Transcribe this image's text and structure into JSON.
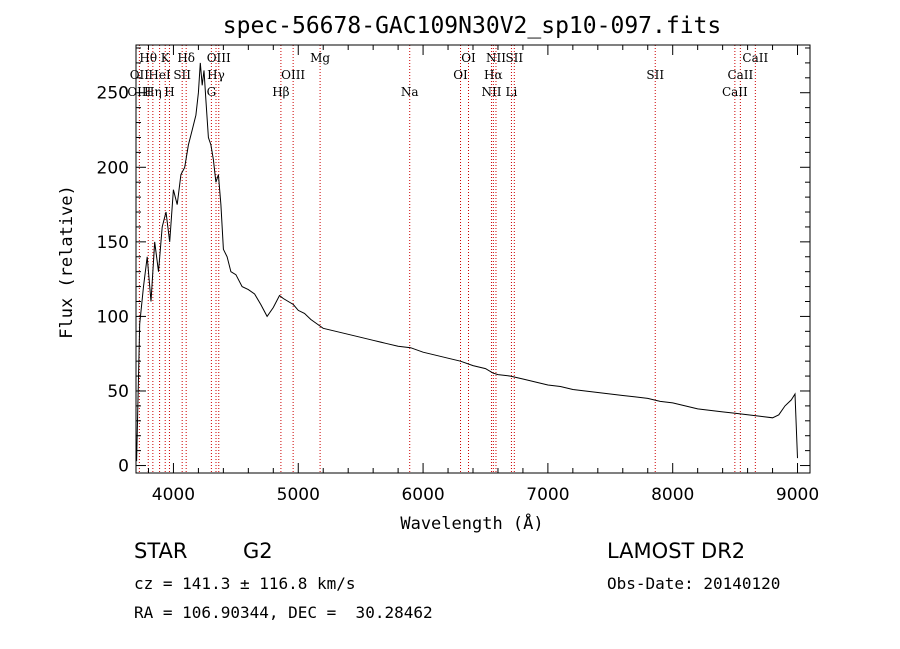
{
  "chart_data": {
    "type": "line",
    "title": "spec-56678-GAC109N30V2_sp10-097.fits",
    "xlabel": "Wavelength (Å)",
    "ylabel": "Flux (relative)",
    "xlim": [
      3700,
      9100
    ],
    "ylim": [
      -5,
      282
    ],
    "xticks": [
      4000,
      5000,
      6000,
      7000,
      8000,
      9000
    ],
    "yticks": [
      0,
      50,
      100,
      150,
      200,
      250
    ],
    "xtick_labels": [
      "4000",
      "5000",
      "6000",
      "7000",
      "8000",
      "9000"
    ],
    "ytick_labels": [
      "0",
      "50",
      "100",
      "150",
      "200",
      "250"
    ],
    "grid": false,
    "line_color": "#000000",
    "marker_color": "#cc0000",
    "series": [
      {
        "x": [
          3705,
          3730,
          3760,
          3790,
          3820,
          3850,
          3880,
          3910,
          3940,
          3970,
          4000,
          4030,
          4060,
          4090,
          4120,
          4150,
          4180,
          4200,
          4215,
          4230,
          4245,
          4260,
          4280,
          4300,
          4320,
          4340,
          4360,
          4380,
          4400,
          4430,
          4460,
          4500,
          4550,
          4600,
          4650,
          4700,
          4750,
          4800,
          4850,
          4880,
          4920,
          4960,
          5000,
          5050,
          5100,
          5150,
          5200,
          5300,
          5400,
          5500,
          5600,
          5700,
          5800,
          5900,
          6000,
          6100,
          6200,
          6300,
          6400,
          6500,
          6560,
          6600,
          6700,
          6800,
          6900,
          7000,
          7100,
          7200,
          7300,
          7400,
          7500,
          7600,
          7700,
          7800,
          7900,
          8000,
          8100,
          8200,
          8300,
          8400,
          8500,
          8600,
          8700,
          8800,
          8850,
          8900,
          8950,
          8980,
          9000
        ],
        "y": [
          3,
          95,
          120,
          140,
          110,
          150,
          130,
          160,
          170,
          150,
          185,
          175,
          195,
          200,
          215,
          225,
          235,
          250,
          270,
          255,
          265,
          245,
          220,
          215,
          205,
          190,
          195,
          175,
          145,
          140,
          130,
          128,
          120,
          118,
          115,
          108,
          100,
          106,
          114,
          112,
          110,
          108,
          104,
          102,
          98,
          95,
          92,
          90,
          88,
          86,
          84,
          82,
          80,
          79,
          76,
          74,
          72,
          70,
          67,
          65,
          62,
          61,
          60,
          58,
          56,
          54,
          53,
          51,
          50,
          49,
          48,
          47,
          46,
          45,
          43,
          42,
          40,
          38,
          37,
          36,
          35,
          34,
          33,
          32,
          34,
          40,
          44,
          48,
          5
        ]
      }
    ],
    "annotations": [
      {
        "label": "Hθ",
        "x": 3798,
        "row": 1
      },
      {
        "label": "K",
        "x": 3934,
        "row": 1
      },
      {
        "label": "Hδ",
        "x": 4102,
        "row": 1
      },
      {
        "label": "OIII",
        "x": 4363,
        "row": 1
      },
      {
        "label": "Mg",
        "x": 5175,
        "row": 1
      },
      {
        "label": "OI",
        "x": 6364,
        "row": 1
      },
      {
        "label": "NII",
        "x": 6584,
        "row": 1
      },
      {
        "label": "SII",
        "x": 6731,
        "row": 1
      },
      {
        "label": "CaII",
        "x": 8662,
        "row": 1
      },
      {
        "label": "OII",
        "x": 3727,
        "row": 2
      },
      {
        "label": "HeI",
        "x": 3889,
        "row": 2
      },
      {
        "label": "SII",
        "x": 4070,
        "row": 2
      },
      {
        "label": "Hγ",
        "x": 4341,
        "row": 2
      },
      {
        "label": "OIII",
        "x": 4959,
        "row": 2
      },
      {
        "label": "OI",
        "x": 6300,
        "row": 2
      },
      {
        "label": "Hα",
        "x": 6563,
        "row": 2
      },
      {
        "label": "SII",
        "x": 7860,
        "row": 2
      },
      {
        "label": "CaII",
        "x": 8542,
        "row": 2
      },
      {
        "label": "OIII",
        "x": 3727,
        "row": 3
      },
      {
        "label": "Hη",
        "x": 3835,
        "row": 3
      },
      {
        "label": "H",
        "x": 3968,
        "row": 3
      },
      {
        "label": "G",
        "x": 4304,
        "row": 3
      },
      {
        "label": "Hβ",
        "x": 4861,
        "row": 3
      },
      {
        "label": "Na",
        "x": 5893,
        "row": 3
      },
      {
        "label": "NII",
        "x": 6548,
        "row": 3
      },
      {
        "label": "Li",
        "x": 6708,
        "row": 3
      },
      {
        "label": "CaII",
        "x": 8498,
        "row": 3
      }
    ]
  },
  "info": {
    "object_class": "STAR",
    "subclass": "G2",
    "cz": "cz = 141.3 ± 116.8 km/s",
    "ra_dec": "RA = 106.90344, DEC =  30.28462",
    "survey": "LAMOST DR2",
    "obs_date": "Obs-Date: 20140120"
  }
}
